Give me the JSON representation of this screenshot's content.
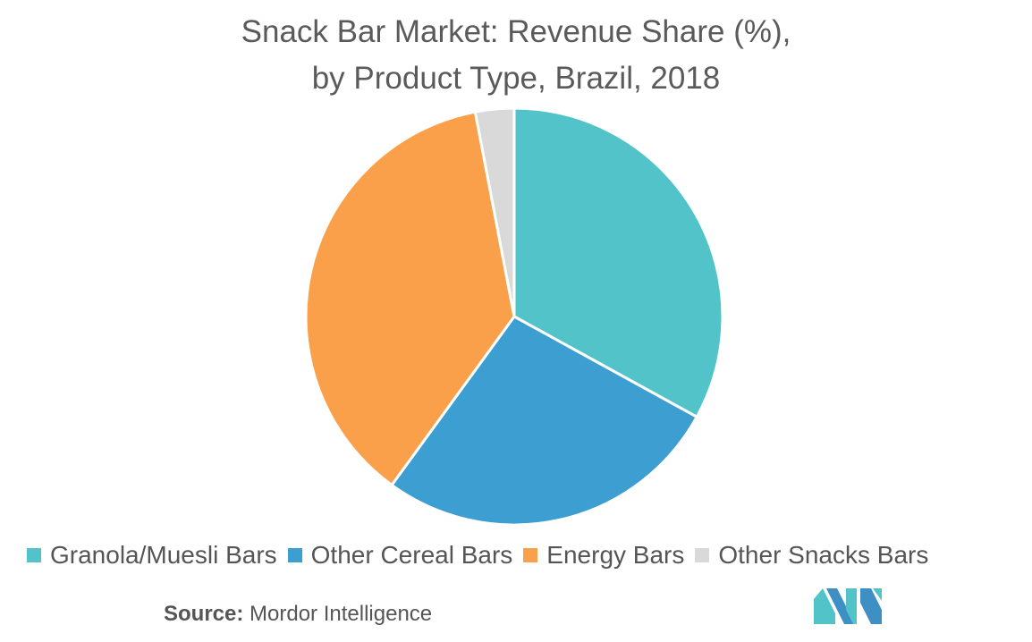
{
  "chart_data": {
    "type": "pie",
    "title": "Snack Bar Market: Revenue Share (%), by Product Type, Brazil, 2018",
    "title_lines": [
      "Snack Bar Market: Revenue Share (%),",
      "by Product Type, Brazil, 2018"
    ],
    "slices": [
      {
        "label": "Granola/Muesli Bars",
        "value": 33,
        "color": "#52c3c9"
      },
      {
        "label": "Other Cereal Bars",
        "value": 27,
        "color": "#3d9ed2"
      },
      {
        "label": "Energy Bars",
        "value": 37,
        "color": "#fba04a"
      },
      {
        "label": "Other Snacks Bars",
        "value": 3,
        "color": "#d9d9d9"
      }
    ],
    "start": "12 o'clock",
    "direction": "clockwise",
    "legend_position": "bottom"
  },
  "source": {
    "label": "Source:",
    "text": "Mordor Intelligence"
  },
  "logo": {
    "icon": "mordor-intelligence-logo-icon",
    "colors": [
      "#52c3c9",
      "#3d8fc4"
    ]
  }
}
